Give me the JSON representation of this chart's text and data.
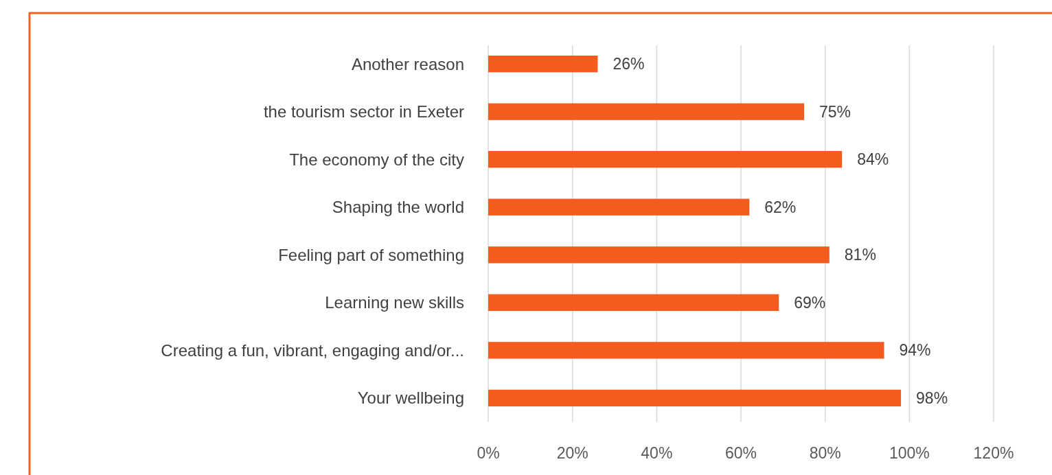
{
  "chart_data": {
    "type": "bar",
    "orientation": "horizontal",
    "categories": [
      "Another reason",
      "the tourism sector in Exeter",
      "The economy of the city",
      "Shaping the world",
      "Feeling part of something",
      "Learning new skills",
      "Creating a fun, vibrant, engaging and/or...",
      "Your wellbeing"
    ],
    "values": [
      26,
      75,
      84,
      62,
      81,
      69,
      94,
      98
    ],
    "value_labels": [
      "26%",
      "75%",
      "84%",
      "62%",
      "81%",
      "69%",
      "94%",
      "98%"
    ],
    "color": "#f45b1f",
    "xlim": [
      0,
      120
    ],
    "xticks": [
      {
        "value": 0,
        "label": "0%"
      },
      {
        "value": 20,
        "label": "20%"
      },
      {
        "value": 40,
        "label": "40%"
      },
      {
        "value": 60,
        "label": "60%"
      },
      {
        "value": 80,
        "label": "80%"
      },
      {
        "value": 100,
        "label": "100%"
      },
      {
        "value": 120,
        "label": "120%"
      }
    ],
    "grid": "x"
  }
}
